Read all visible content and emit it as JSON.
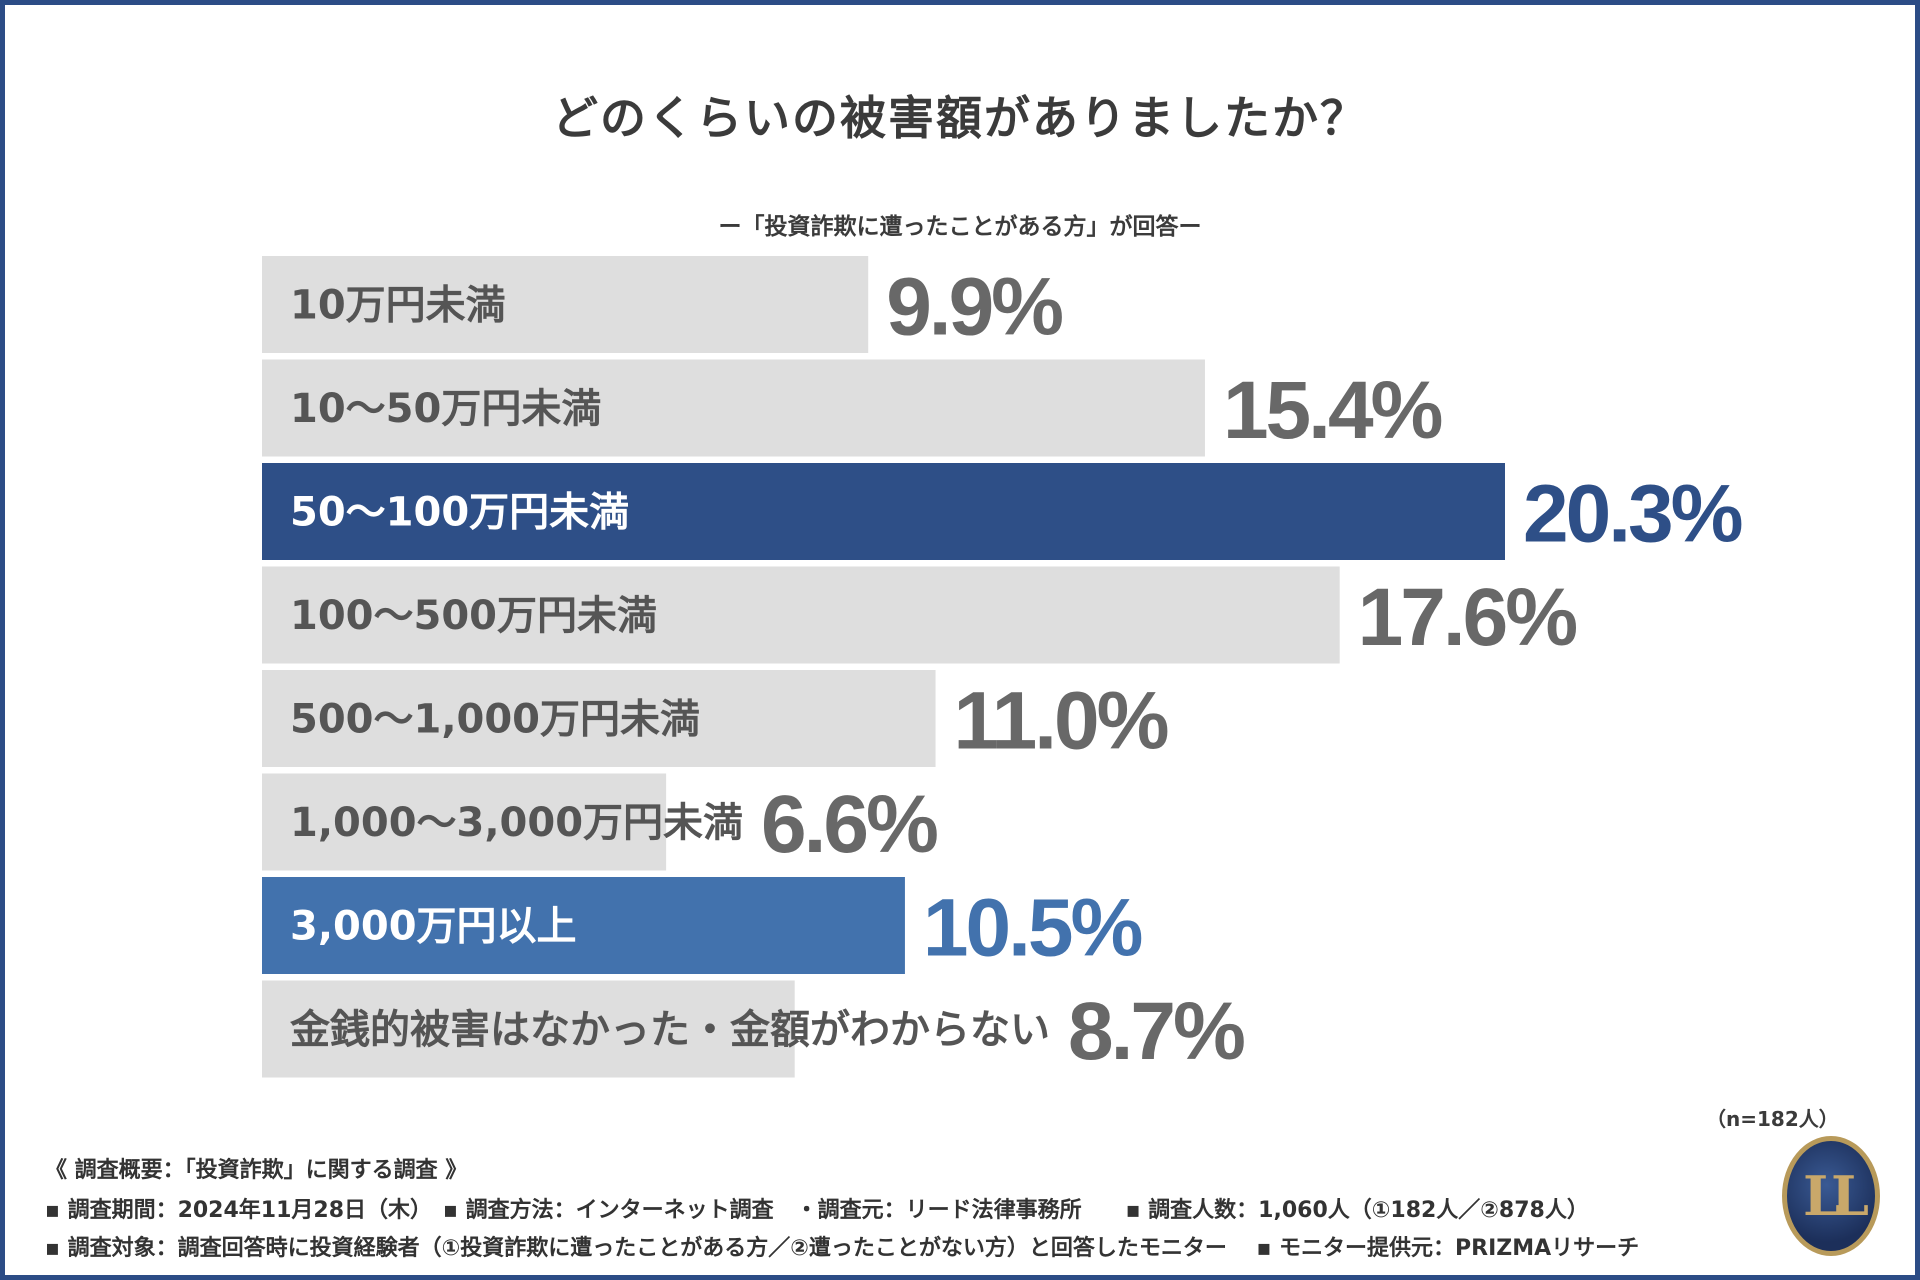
{
  "title": "どのくらいの被害額がありましたか？",
  "subtitle": "ー「投資詐欺に遭ったことがある方」が回答ー",
  "chart_data": {
    "type": "bar",
    "orientation": "horizontal",
    "title": "どのくらいの被害額がありましたか？",
    "subtitle": "ー「投資詐欺に遭ったことがある方」が回答ー",
    "unit": "%",
    "categories": [
      "10万円未満",
      "10〜50万円未満",
      "50〜100万円未満",
      "100〜500万円未満",
      "500〜1,000万円未満",
      "1,000〜3,000万円未満",
      "3,000万円以上",
      "金銭的被害はなかった・金額がわからない"
    ],
    "values": [
      9.9,
      15.4,
      20.3,
      17.6,
      11.0,
      6.6,
      10.5,
      8.7
    ],
    "value_labels": [
      "9.9%",
      "15.4%",
      "20.3%",
      "17.6%",
      "11.0%",
      "6.6%",
      "10.5%",
      "8.7%"
    ],
    "xlim": [
      0,
      20.3
    ],
    "bar_colors": [
      "#dedede",
      "#dedede",
      "#2e4f87",
      "#dedede",
      "#dedede",
      "#dedede",
      "#4272ad",
      "#dedede"
    ],
    "label_colors": [
      "#555555",
      "#555555",
      "#ffffff",
      "#555555",
      "#555555",
      "#555555",
      "#ffffff",
      "#555555"
    ],
    "value_colors": [
      "#686868",
      "#686868",
      "#2e4f87",
      "#686868",
      "#686868",
      "#686868",
      "#4272ad",
      "#686868"
    ],
    "sample_size": "（n=182人）"
  },
  "footer": {
    "heading": "《 調査概要：「投資詐欺」に関する調査 》",
    "line2": "▪ 調査期間：2024年11月28日（木）　▪ 調査方法：インターネット調査　・調査元：リード法律事務所　　▪ 調査人数：1,060人（①182人／②878人）",
    "line3": "▪ 調査対象：調査回答時に投資経験者（①投資詐欺に遭ったことがある方／②遭ったことがない方）と回答したモニター　 ▪ モニター提供元：PRIZMAリサーチ"
  },
  "logo_text": "LL"
}
